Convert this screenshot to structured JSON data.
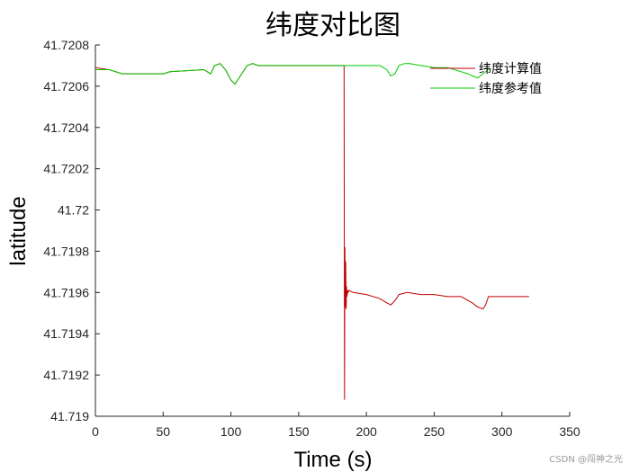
{
  "chart_data": {
    "type": "line",
    "title": "纬度对比图",
    "xlabel": "Time (s)",
    "ylabel": "latitude",
    "xlim": [
      0,
      350
    ],
    "ylim": [
      41.719,
      41.7208
    ],
    "x_ticks": [
      0,
      50,
      100,
      150,
      200,
      250,
      300,
      350
    ],
    "x_tick_labels": [
      "0",
      "50",
      "100",
      "150",
      "200",
      "250",
      "300",
      "350"
    ],
    "y_ticks": [
      41.719,
      41.7192,
      41.7194,
      41.7196,
      41.7198,
      41.72,
      41.7202,
      41.7204,
      41.7206,
      41.7208
    ],
    "y_tick_labels": [
      "41.719",
      "41.7192",
      "41.7194",
      "41.7196",
      "41.7198",
      "41.72",
      "41.7202",
      "41.7204",
      "41.7206",
      "41.7208"
    ],
    "grid": false,
    "legend_placement": "top-right",
    "series": [
      {
        "name": "纬度计算值",
        "color": "#c00000",
        "x": [
          0,
          10,
          20,
          25,
          50,
          55,
          80,
          85,
          88,
          92,
          96,
          100,
          103,
          108,
          112,
          116,
          120,
          130,
          140,
          150,
          160,
          170,
          180,
          183.5,
          183.8,
          184.1,
          184.4,
          184.7,
          185,
          185.3,
          185.6,
          186,
          186.4,
          187,
          190,
          200,
          210,
          215,
          218,
          221,
          224,
          230,
          240,
          250,
          260,
          270,
          278,
          282,
          286,
          288,
          290,
          300,
          310,
          320
        ],
        "y": [
          41.72069,
          41.72068,
          41.72066,
          41.72066,
          41.72066,
          41.72067,
          41.72068,
          41.72066,
          41.7207,
          41.72071,
          41.72068,
          41.72063,
          41.72061,
          41.72066,
          41.7207,
          41.72071,
          41.7207,
          41.7207,
          41.7207,
          41.7207,
          41.7207,
          41.7207,
          41.7207,
          41.7207,
          41.71908,
          41.71982,
          41.71953,
          41.71975,
          41.71952,
          41.71963,
          41.71958,
          41.71961,
          41.7196,
          41.71961,
          41.7196,
          41.71959,
          41.71957,
          41.71955,
          41.71954,
          41.71956,
          41.71959,
          41.7196,
          41.71959,
          41.71959,
          41.71958,
          41.71958,
          41.71955,
          41.71953,
          41.71952,
          41.71954,
          41.71958,
          41.71958,
          41.71958,
          41.71958
        ]
      },
      {
        "name": "纬度参考值",
        "color": "#00cc00",
        "x": [
          0,
          10,
          20,
          25,
          50,
          55,
          80,
          85,
          88,
          92,
          96,
          100,
          103,
          108,
          112,
          116,
          120,
          130,
          140,
          150,
          160,
          170,
          180,
          190,
          200,
          210,
          215,
          218,
          221,
          224,
          228,
          232,
          240,
          250,
          260,
          270,
          275,
          278,
          282,
          286,
          290
        ],
        "y": [
          41.72068,
          41.72068,
          41.72066,
          41.72066,
          41.72066,
          41.72067,
          41.72068,
          41.72066,
          41.7207,
          41.72071,
          41.72068,
          41.72063,
          41.72061,
          41.72066,
          41.7207,
          41.72071,
          41.7207,
          41.7207,
          41.7207,
          41.7207,
          41.7207,
          41.7207,
          41.7207,
          41.7207,
          41.7207,
          41.7207,
          41.72068,
          41.72065,
          41.72066,
          41.7207,
          41.72071,
          41.72071,
          41.7207,
          41.72069,
          41.72069,
          41.72067,
          41.72066,
          41.72065,
          41.72064,
          41.72066,
          41.72068
        ]
      }
    ]
  },
  "watermark": "CSDN @闯神之光"
}
